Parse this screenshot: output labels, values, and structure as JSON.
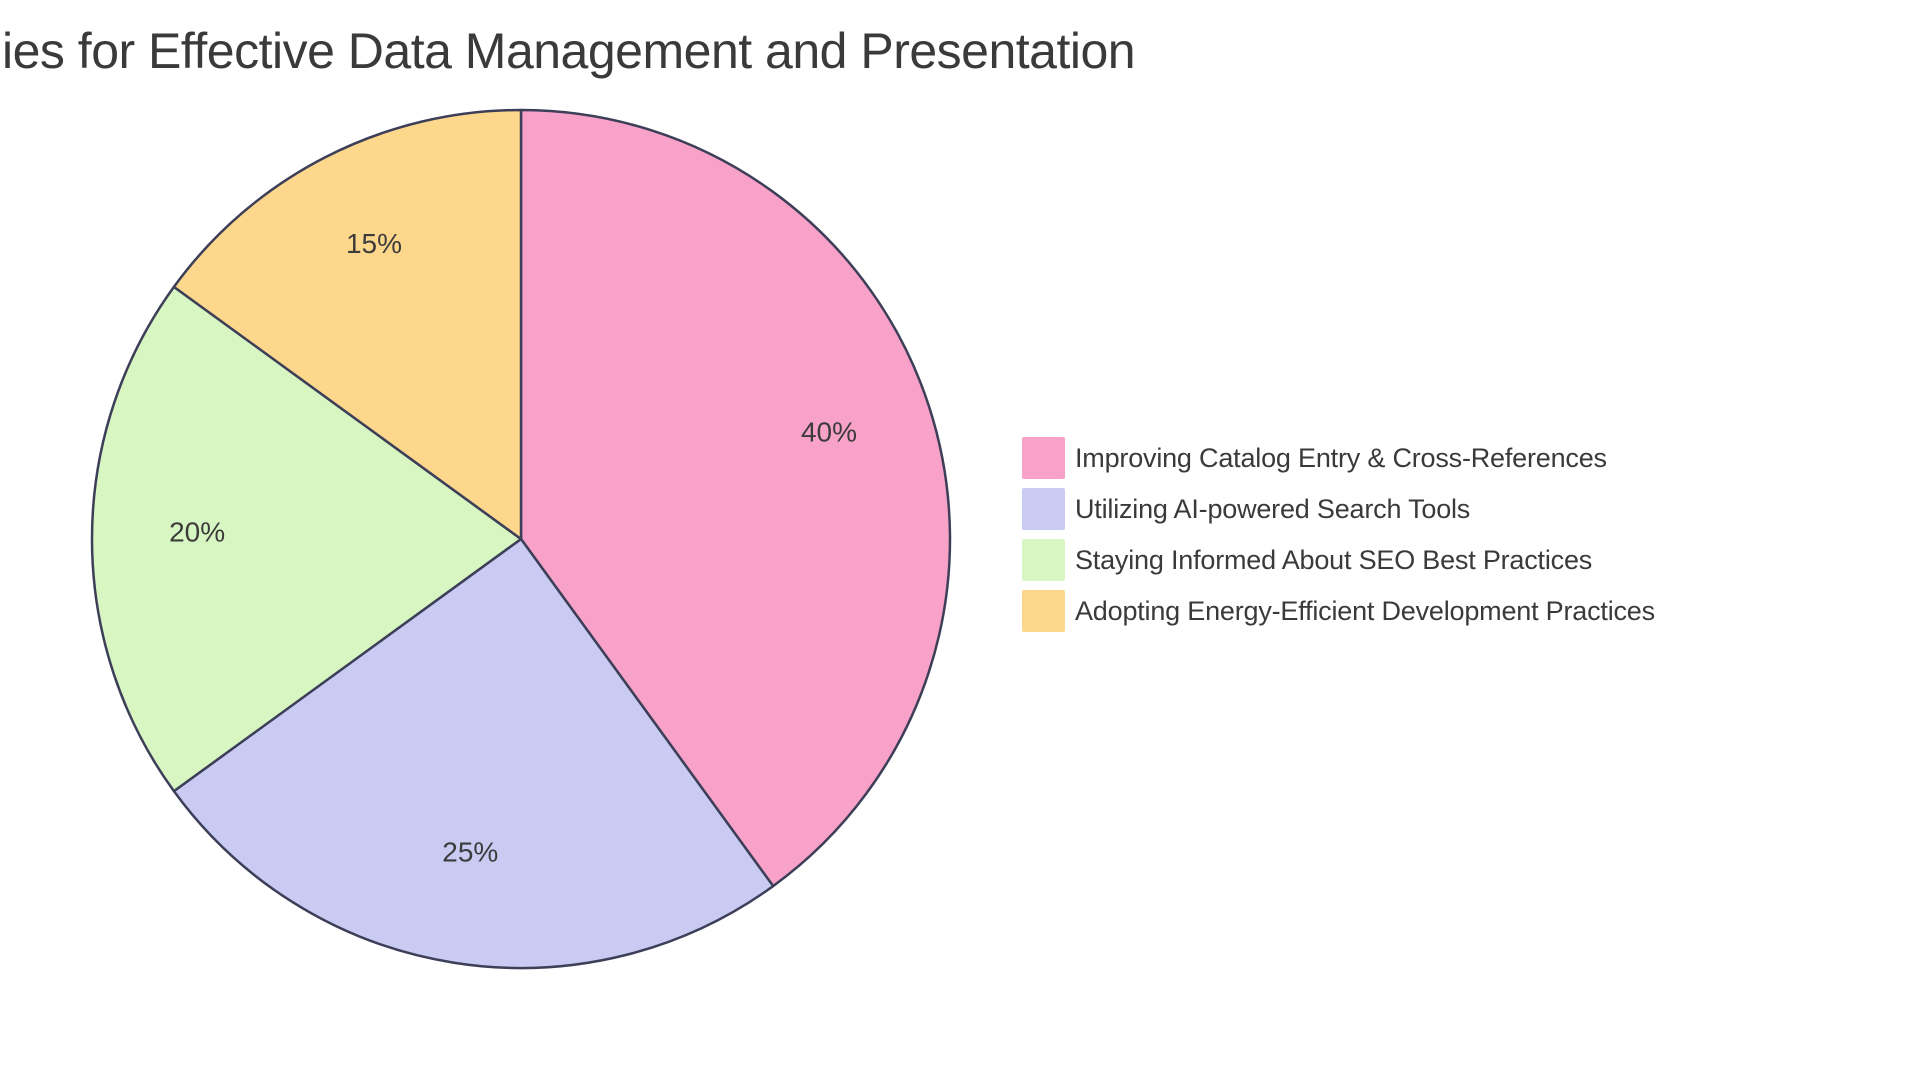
{
  "title": {
    "visible_text": "ies for Effective Data Management and Presentation",
    "note": "title is clipped at the left edge of the image"
  },
  "colors": {
    "background": "#ffffff",
    "wedge_border": "#3d3f58",
    "title_text": "#3a3a3a",
    "label_text": "#3c3c3c",
    "legend_text": "#3a3a3a"
  },
  "chart_data": {
    "type": "pie",
    "title": "ies for Effective Data Management and Presentation",
    "start_angle": "12 o'clock",
    "direction": "clockwise",
    "legend_position": "center right",
    "grid": false,
    "slices": [
      {
        "label": "Improving Catalog Entry & Cross-References",
        "value": 40,
        "pct_label": "40%",
        "color": "#f9a2c9"
      },
      {
        "label": "Utilizing AI-powered Search Tools",
        "value": 25,
        "pct_label": "25%",
        "color": "#c9cbf3"
      },
      {
        "label": "Staying Informed About SEO Best Practices",
        "value": 20,
        "pct_label": "20%",
        "color": "#d8f6c2"
      },
      {
        "label": "Adopting Energy-Efficient Development Practices",
        "value": 15,
        "pct_label": "15%",
        "color": "#fcd78c"
      }
    ]
  }
}
